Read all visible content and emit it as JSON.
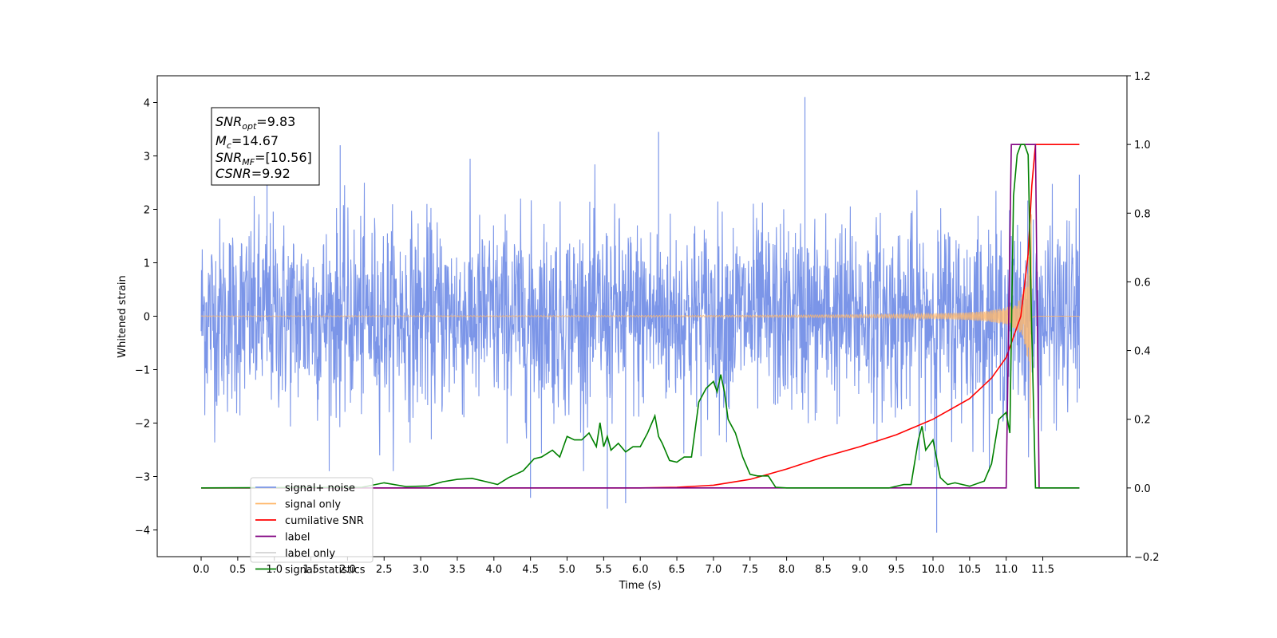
{
  "chart_data": {
    "type": "line",
    "xlabel": "Time (s)",
    "ylabel_left": "Whitened strain",
    "ylabel_right": "",
    "xlim": [
      -0.6,
      12.65
    ],
    "ylim_left": [
      -4.5,
      4.5
    ],
    "ylim_right": [
      -0.2,
      1.2
    ],
    "x_ticks": [
      "0.0",
      "0.5",
      "1.0",
      "1.5",
      "2.0",
      "2.5",
      "3.0",
      "3.5",
      "4.0",
      "4.5",
      "5.0",
      "5.5",
      "6.0",
      "6.5",
      "7.0",
      "7.5",
      "8.0",
      "8.5",
      "9.0",
      "9.5",
      "10.0",
      "10.5",
      "11.0",
      "11.5"
    ],
    "y_ticks_left": [
      "−4",
      "−3",
      "−2",
      "−1",
      "0",
      "1",
      "2",
      "3",
      "4"
    ],
    "y_ticks_right": [
      "−0.2",
      "0.0",
      "0.2",
      "0.4",
      "0.6",
      "0.8",
      "1.0",
      "1.2"
    ],
    "grid": false,
    "legend_position": "lower-left",
    "stats_box": {
      "snr_opt_label": "SNR",
      "snr_opt_sub": "opt",
      "snr_opt_value": "=9.83",
      "mc_label": "M",
      "mc_sub": "c",
      "mc_value": "=14.67",
      "snr_mf_label": "SNR",
      "snr_mf_sub": "MF",
      "snr_mf_value": "=[10.56]",
      "csnr_label": "CSNR",
      "csnr_value": "=9.92"
    },
    "series": [
      {
        "name": "signal+ noise",
        "axis": "left",
        "color": "#7b95e8",
        "t_range": [
          0.0,
          12.0
        ],
        "amplitude_envelope": 2.2,
        "peak_spikes": [
          [
            0.9,
            3.1
          ],
          [
            1.9,
            3.2
          ],
          [
            6.25,
            3.45
          ],
          [
            8.25,
            4.1
          ],
          [
            10.05,
            -4.05
          ],
          [
            5.55,
            -3.6
          ],
          [
            5.8,
            -3.5
          ],
          [
            4.5,
            -3.4
          ],
          [
            12.0,
            2.65
          ]
        ]
      },
      {
        "name": "signal only",
        "axis": "left",
        "color": "#ffb86b",
        "t_range": [
          0.0,
          12.0
        ],
        "description_chirp_merger_time": 11.35,
        "max_amplitude": 2.2
      },
      {
        "name": "cumilative SNR",
        "axis": "right",
        "color": "#ff0000",
        "x": [
          0.0,
          6.0,
          6.5,
          7.0,
          7.5,
          8.0,
          8.5,
          9.0,
          9.5,
          10.0,
          10.5,
          10.8,
          11.0,
          11.2,
          11.3,
          11.35,
          11.4,
          11.45,
          12.0
        ],
        "y": [
          0.0,
          0.0,
          0.002,
          0.008,
          0.025,
          0.055,
          0.09,
          0.12,
          0.155,
          0.2,
          0.26,
          0.32,
          0.38,
          0.5,
          0.68,
          0.88,
          1.0,
          1.0,
          1.0
        ]
      },
      {
        "name": "label",
        "axis": "right",
        "color": "#800080",
        "x": [
          0.0,
          11.0,
          11.07,
          11.4,
          11.45,
          12.0
        ],
        "y": [
          0.0,
          0.0,
          1.0,
          1.0,
          0.0,
          0.0
        ]
      },
      {
        "name": "label only",
        "axis": "right",
        "color": "#d3d3d3",
        "hidden_in_plot": true
      },
      {
        "name": "signal statistics",
        "axis": "right",
        "color": "#008000",
        "x": [
          0.0,
          2.2,
          2.5,
          2.8,
          3.1,
          3.3,
          3.5,
          3.7,
          3.9,
          4.05,
          4.2,
          4.4,
          4.55,
          4.65,
          4.8,
          4.9,
          5.0,
          5.1,
          5.2,
          5.3,
          5.4,
          5.45,
          5.5,
          5.55,
          5.6,
          5.7,
          5.8,
          5.9,
          6.0,
          6.1,
          6.2,
          6.25,
          6.3,
          6.4,
          6.5,
          6.6,
          6.7,
          6.8,
          6.9,
          6.95,
          7.0,
          7.05,
          7.1,
          7.15,
          7.2,
          7.3,
          7.4,
          7.5,
          7.6,
          7.75,
          7.85,
          8.0,
          8.5,
          9.0,
          9.4,
          9.6,
          9.7,
          9.8,
          9.85,
          9.9,
          10.0,
          10.1,
          10.2,
          10.3,
          10.5,
          10.7,
          10.8,
          10.9,
          11.0,
          11.05,
          11.1,
          11.15,
          11.2,
          11.25,
          11.3,
          11.35,
          11.4,
          11.45,
          12.0
        ],
        "y": [
          0.0,
          0.002,
          0.015,
          0.004,
          0.006,
          0.018,
          0.025,
          0.028,
          0.018,
          0.01,
          0.03,
          0.05,
          0.085,
          0.09,
          0.11,
          0.09,
          0.15,
          0.14,
          0.14,
          0.16,
          0.12,
          0.19,
          0.12,
          0.15,
          0.11,
          0.13,
          0.105,
          0.12,
          0.12,
          0.16,
          0.21,
          0.15,
          0.13,
          0.08,
          0.075,
          0.09,
          0.09,
          0.25,
          0.29,
          0.3,
          0.31,
          0.28,
          0.33,
          0.28,
          0.2,
          0.16,
          0.09,
          0.04,
          0.035,
          0.035,
          0.002,
          0.0,
          0.0,
          0.0,
          0.0,
          0.01,
          0.01,
          0.14,
          0.18,
          0.11,
          0.14,
          0.03,
          0.01,
          0.015,
          0.005,
          0.02,
          0.07,
          0.2,
          0.22,
          0.16,
          0.85,
          0.97,
          1.0,
          1.0,
          0.97,
          0.45,
          0.0,
          0.0,
          0.0
        ]
      }
    ]
  }
}
